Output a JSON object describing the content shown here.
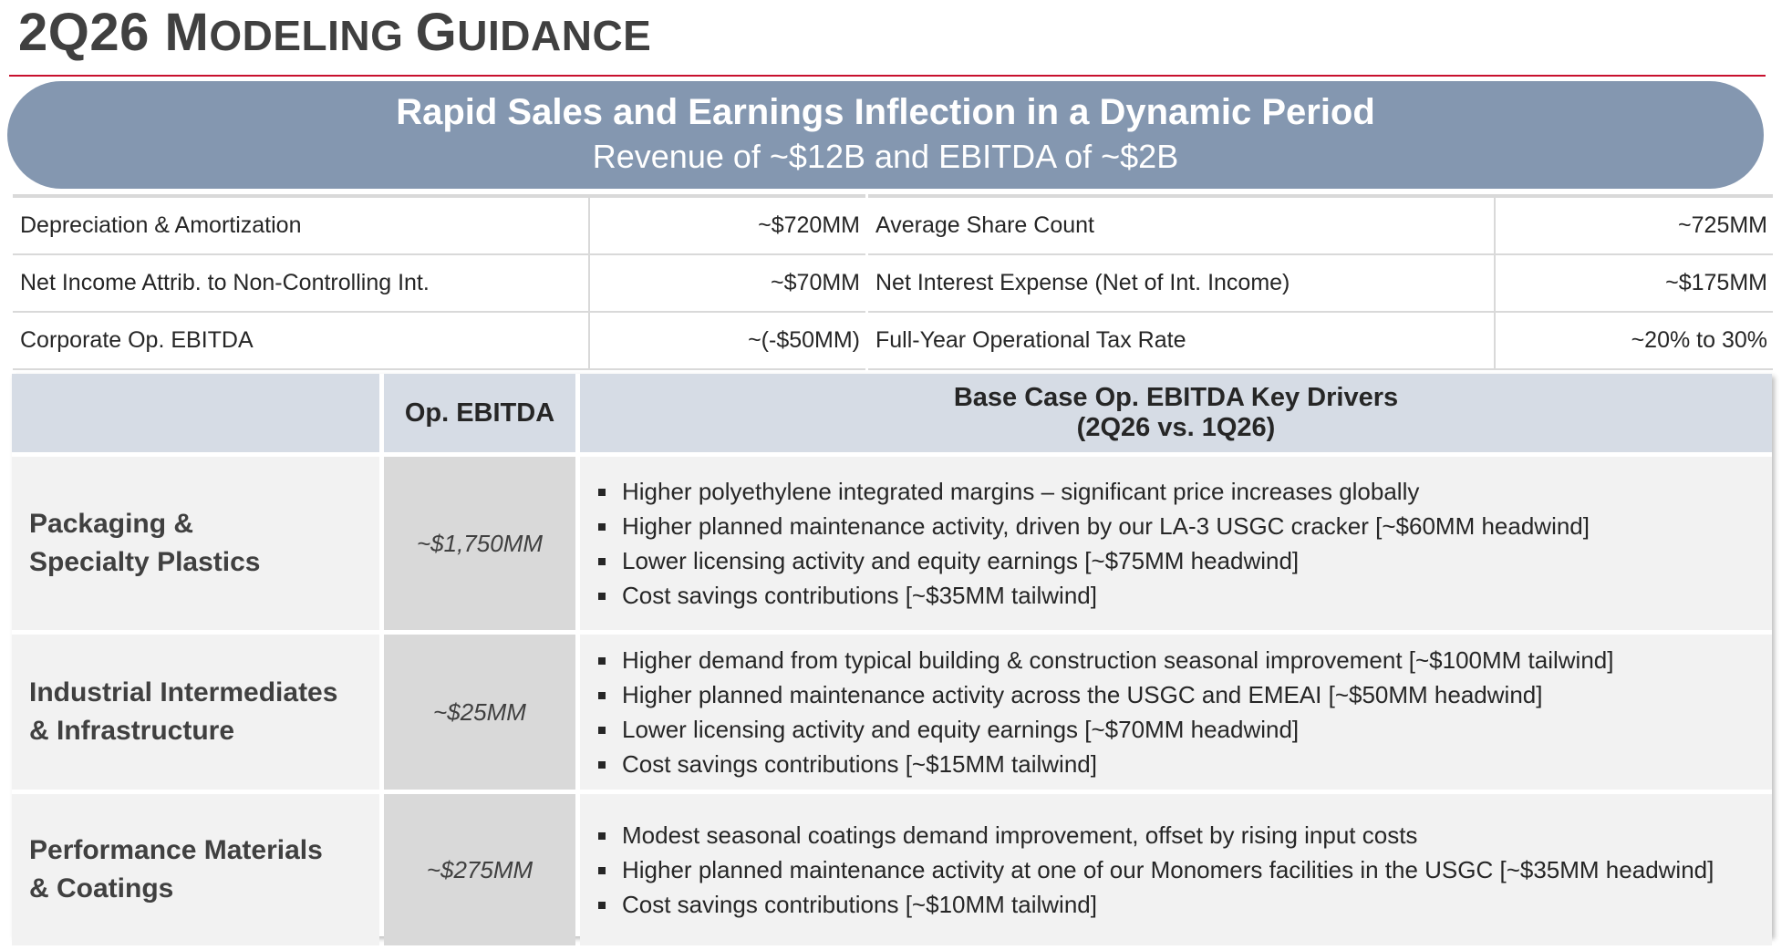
{
  "title": {
    "main": "2Q26 M",
    "sc1": "ODELING ",
    "g": "G",
    "sc2": "UIDANCE"
  },
  "banner": {
    "headline": "Rapid Sales and Earnings Inflection in a Dynamic Period",
    "subline": "Revenue of ~$12B and EBITDA of ~$2B"
  },
  "metrics_left": [
    {
      "label": "Depreciation & Amortization",
      "value": "~$720MM"
    },
    {
      "label": "Net Income Attrib. to Non-Controlling Int.",
      "value": "~$70MM"
    },
    {
      "label": "Corporate Op. EBITDA",
      "value": "~(-$50MM)"
    }
  ],
  "metrics_right": [
    {
      "label": "Average Share Count",
      "value": "~725MM"
    },
    {
      "label": "Net Interest Expense (Net of Int. Income)",
      "value": "~$175MM"
    },
    {
      "label": "Full-Year Operational Tax Rate",
      "value": "~20% to 30%"
    }
  ],
  "segments_table": {
    "header_ebitda": "Op. EBITDA",
    "header_drivers_1": "Base Case Op. EBITDA Key Drivers",
    "header_drivers_2": "(2Q26 vs. 1Q26)",
    "rows": [
      {
        "seg_1": "Packaging &",
        "seg_2": "Specialty Plastics",
        "ebitda": "~$1,750MM",
        "drivers": [
          "Higher polyethylene integrated margins – significant price increases globally",
          "Higher planned maintenance activity, driven by our LA-3 USGC cracker [~$60MM headwind]",
          "Lower licensing activity and equity earnings [~$75MM headwind]",
          "Cost savings contributions [~$35MM tailwind]"
        ]
      },
      {
        "seg_1": "Industrial Intermediates",
        "seg_2": "& Infrastructure",
        "ebitda": "~$25MM",
        "drivers": [
          "Higher demand from typical building & construction seasonal improvement [~$100MM tailwind]",
          "Higher planned maintenance activity across the USGC and EMEAI [~$50MM headwind]",
          "Lower licensing activity and equity earnings [~$70MM headwind]",
          "Cost savings contributions [~$15MM tailwind]"
        ]
      },
      {
        "seg_1": "Performance Materials",
        "seg_2": "& Coatings",
        "ebitda": "~$275MM",
        "drivers": [
          "Modest seasonal coatings demand improvement, offset by rising input costs",
          "Higher planned maintenance activity at one of our Monomers facilities in the USGC [~$35MM headwind]",
          "Cost savings contributions [~$10MM tailwind]"
        ]
      }
    ]
  }
}
